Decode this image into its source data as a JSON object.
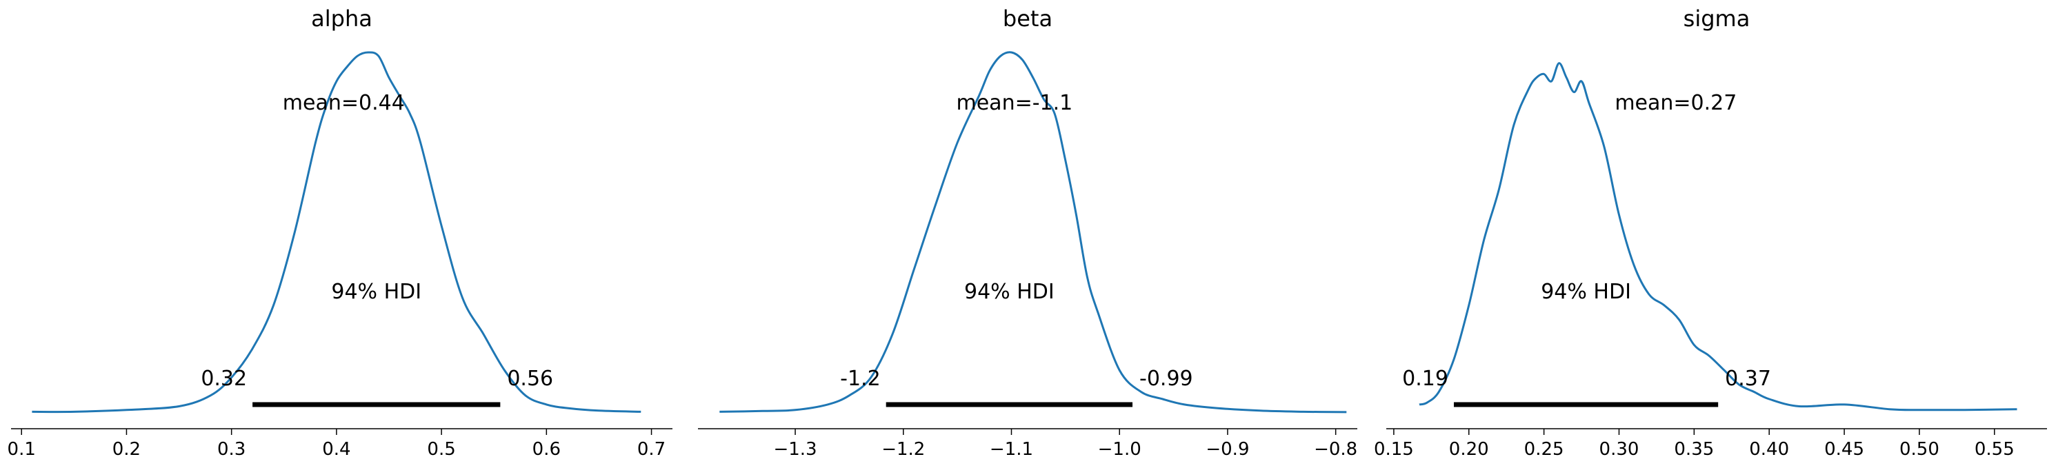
{
  "colors": {
    "line": "#1f77b4",
    "hdi_bar": "#000000",
    "axis": "#000000"
  },
  "chart_data": [
    {
      "type": "line",
      "title": "alpha",
      "xlabel": "",
      "ylabel": "",
      "xlim": [
        0.09,
        0.72
      ],
      "ylim": [
        0,
        1
      ],
      "grid": false,
      "x_ticks": [
        0.1,
        0.2,
        0.3,
        0.4,
        0.5,
        0.6,
        0.7
      ],
      "x_tick_labels": [
        "0.1",
        "0.2",
        "0.3",
        "0.4",
        "0.5",
        "0.6",
        "0.7"
      ],
      "series": [
        {
          "x": [
            0.11,
            0.15,
            0.2,
            0.25,
            0.28,
            0.3,
            0.32,
            0.34,
            0.36,
            0.38,
            0.39,
            0.4,
            0.41,
            0.42,
            0.43,
            0.44,
            0.45,
            0.46,
            0.47,
            0.48,
            0.5,
            0.52,
            0.54,
            0.56,
            0.58,
            0.6,
            0.62,
            0.65,
            0.69
          ],
          "y": [
            0.005,
            0.005,
            0.01,
            0.02,
            0.05,
            0.1,
            0.18,
            0.3,
            0.5,
            0.75,
            0.85,
            0.92,
            0.96,
            0.99,
            1.0,
            0.99,
            0.93,
            0.88,
            0.83,
            0.75,
            0.52,
            0.32,
            0.22,
            0.12,
            0.05,
            0.025,
            0.015,
            0.008,
            0.005
          ]
        }
      ],
      "mean_label": "mean=0.44",
      "hdi": {
        "low": 0.32,
        "high": 0.556,
        "low_label": "0.32",
        "high_label": "0.56",
        "label": "94% HDI"
      }
    },
    {
      "type": "line",
      "title": "beta",
      "xlabel": "",
      "ylabel": "",
      "xlim": [
        -1.39,
        -0.78
      ],
      "ylim": [
        0,
        1
      ],
      "grid": false,
      "x_ticks": [
        -1.3,
        -1.2,
        -1.1,
        -1.0,
        -0.9,
        -0.8
      ],
      "x_tick_labels": [
        "−1.3",
        "−1.2",
        "−1.1",
        "−1.0",
        "−0.9",
        "−0.8"
      ],
      "series": [
        {
          "x": [
            -1.37,
            -1.33,
            -1.3,
            -1.27,
            -1.25,
            -1.23,
            -1.21,
            -1.19,
            -1.17,
            -1.15,
            -1.13,
            -1.12,
            -1.11,
            -1.1,
            -1.09,
            -1.08,
            -1.07,
            -1.06,
            -1.05,
            -1.04,
            -1.03,
            -1.02,
            -1.0,
            -0.98,
            -0.96,
            -0.94,
            -0.91,
            -0.87,
            -0.83,
            -0.79
          ],
          "y": [
            0.005,
            0.007,
            0.01,
            0.025,
            0.05,
            0.1,
            0.22,
            0.4,
            0.58,
            0.75,
            0.88,
            0.95,
            0.99,
            1.0,
            0.98,
            0.93,
            0.87,
            0.83,
            0.7,
            0.55,
            0.38,
            0.28,
            0.12,
            0.06,
            0.04,
            0.025,
            0.015,
            0.008,
            0.005,
            0.004
          ]
        }
      ],
      "mean_label": "mean=-1.1",
      "hdi": {
        "low": -1.216,
        "high": -0.988,
        "low_label": "-1.2",
        "high_label": "-0.99",
        "label": "94% HDI"
      }
    },
    {
      "type": "line",
      "title": "sigma",
      "xlabel": "",
      "ylabel": "",
      "xlim": [
        0.145,
        0.585
      ],
      "ylim": [
        0,
        1
      ],
      "grid": false,
      "x_ticks": [
        0.15,
        0.2,
        0.25,
        0.3,
        0.35,
        0.4,
        0.45,
        0.5,
        0.55
      ],
      "x_tick_labels": [
        "0.15",
        "0.20",
        "0.25",
        "0.30",
        "0.35",
        "0.40",
        "0.45",
        "0.50",
        "0.55"
      ],
      "series": [
        {
          "x": [
            0.167,
            0.172,
            0.18,
            0.19,
            0.2,
            0.21,
            0.22,
            0.23,
            0.24,
            0.245,
            0.25,
            0.255,
            0.26,
            0.265,
            0.27,
            0.275,
            0.28,
            0.29,
            0.3,
            0.31,
            0.32,
            0.33,
            0.34,
            0.35,
            0.36,
            0.37,
            0.38,
            0.39,
            0.4,
            0.42,
            0.45,
            0.48,
            0.5,
            0.53,
            0.565
          ],
          "y": [
            0.025,
            0.03,
            0.06,
            0.15,
            0.3,
            0.48,
            0.62,
            0.8,
            0.9,
            0.93,
            0.94,
            0.92,
            0.97,
            0.93,
            0.89,
            0.92,
            0.86,
            0.74,
            0.55,
            0.41,
            0.33,
            0.3,
            0.26,
            0.19,
            0.16,
            0.12,
            0.08,
            0.06,
            0.04,
            0.02,
            0.025,
            0.012,
            0.01,
            0.01,
            0.012
          ]
        }
      ],
      "mean_label": "mean=0.27",
      "hdi": {
        "low": 0.19,
        "high": 0.366,
        "low_label": "0.19",
        "high_label": "0.37",
        "label": "94% HDI"
      }
    }
  ]
}
